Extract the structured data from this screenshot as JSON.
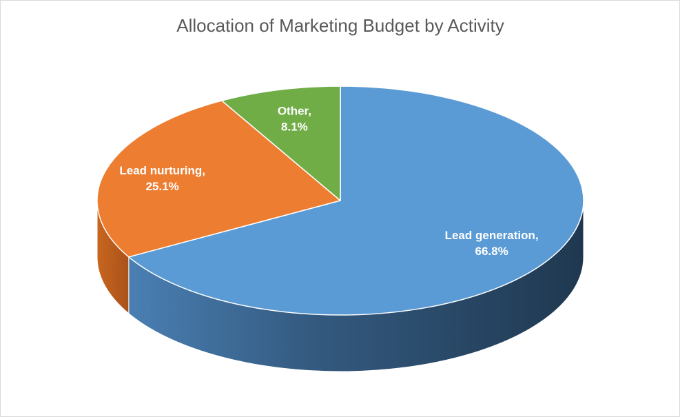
{
  "chart_data": {
    "type": "pie",
    "title": "Allocation of Marketing Budget by Activity",
    "three_d": true,
    "legend": "none",
    "slices": [
      {
        "name": "Lead generation",
        "value": 66.8,
        "label_line1": "Lead generation,",
        "label_line2": "66.8%",
        "color": "#5b9bd5"
      },
      {
        "name": "Lead nurturing",
        "value": 25.1,
        "label_line1": "Lead nurturing,",
        "label_line2": "25.1%",
        "color": "#ed7d31"
      },
      {
        "name": "Other",
        "value": 8.1,
        "label_line1": "Other,",
        "label_line2": "8.1%",
        "color": "#70ad47"
      }
    ]
  }
}
